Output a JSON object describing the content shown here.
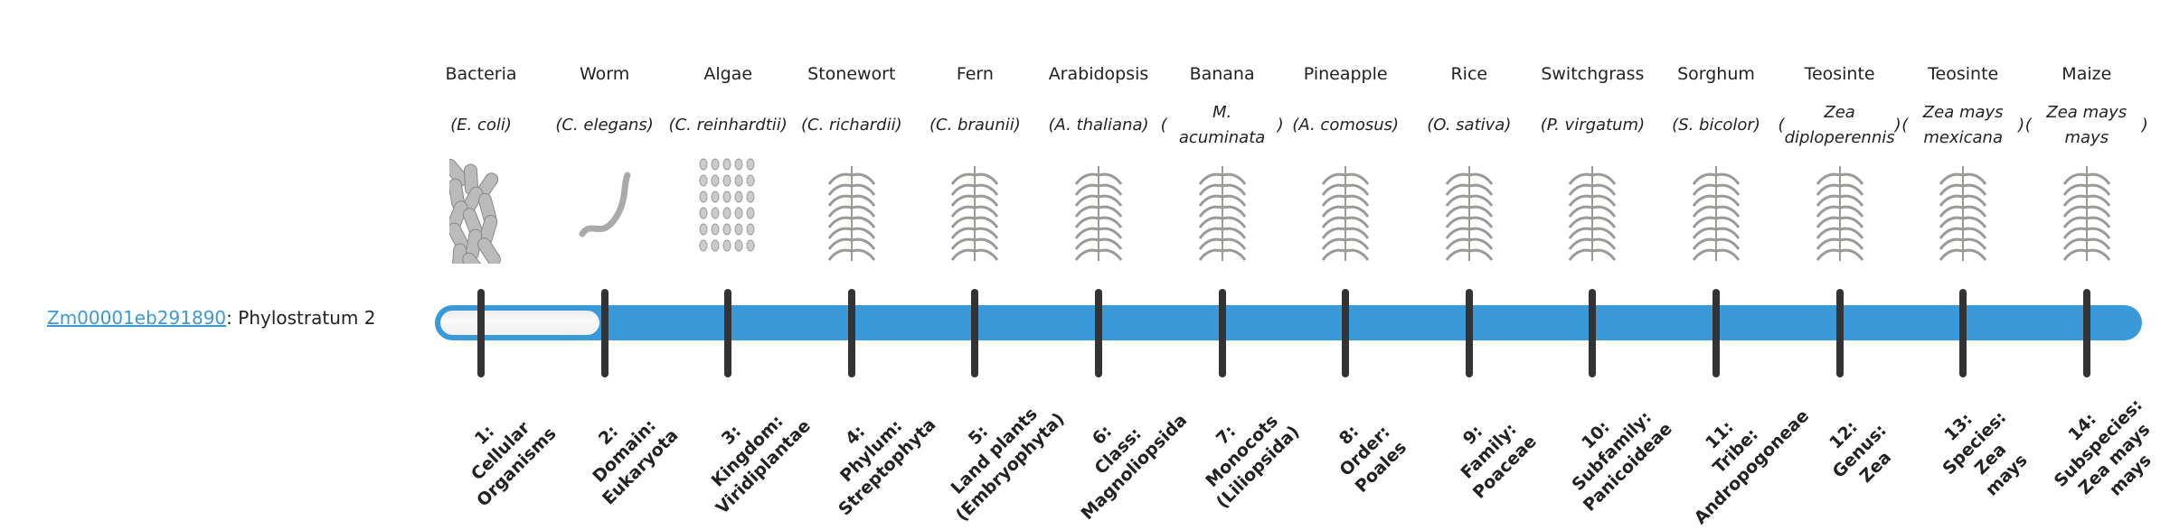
{
  "gene": {
    "id": "Zm00001eb291890",
    "suffix": ": Phylostratum 2",
    "phylostratum": 2
  },
  "colors": {
    "bar": "#3a9ad9",
    "tick": "#333333",
    "link": "#3a9ad9"
  },
  "strata": [
    {
      "name": "Bacteria",
      "species": "E. coli",
      "icon": "bacteria-icon",
      "label": [
        "1:",
        "Cellular",
        "Organisms"
      ]
    },
    {
      "name": "Worm",
      "species": "C. elegans",
      "icon": "worm-icon",
      "label": [
        "2:",
        "Domain:",
        "Eukaryota"
      ]
    },
    {
      "name": "Algae",
      "species": "C. reinhardtii",
      "icon": "algae-icon",
      "label": [
        "3:",
        "Kingdom:",
        "Viridiplantae"
      ]
    },
    {
      "name": "Stonewort",
      "species": "C. richardii",
      "icon": "stonewort-icon",
      "label": [
        "4:",
        "Phylum:",
        "Streptophyta"
      ]
    },
    {
      "name": "Fern",
      "species": "C. braunii",
      "icon": "fern-icon",
      "label": [
        "5:",
        "Land plants",
        "(Embryophyta)"
      ]
    },
    {
      "name": "Arabidopsis",
      "species": "A. thaliana",
      "icon": "arabidopsis-icon",
      "label": [
        "6:",
        "Class:",
        "Magnoliopsida"
      ]
    },
    {
      "name": "Banana",
      "species": "M. acuminata",
      "icon": "banana-icon",
      "label": [
        "7:",
        "Monocots",
        "(Liliopsida)"
      ]
    },
    {
      "name": "Pineapple",
      "species": "A. comosus",
      "icon": "pineapple-icon",
      "label": [
        "8:",
        "Order:",
        "Poales"
      ]
    },
    {
      "name": "Rice",
      "species": "O. sativa",
      "icon": "rice-icon",
      "label": [
        "9:",
        "Family:",
        "Poaceae"
      ]
    },
    {
      "name": "Switchgrass",
      "species": "P. virgatum",
      "icon": "switchgrass-icon",
      "label": [
        "10:",
        "Subfamily:",
        "Panicoideae"
      ]
    },
    {
      "name": "Sorghum",
      "species": "S. bicolor",
      "icon": "sorghum-icon",
      "label": [
        "11:",
        "Tribe:",
        "Andropogoneae"
      ]
    },
    {
      "name": "Teosinte",
      "species": "Zea diploperennis",
      "icon": "teosinte-icon",
      "label": [
        "12:",
        "Genus:",
        "Zea"
      ]
    },
    {
      "name": "Teosinte",
      "species": "Zea mays mexicana",
      "icon": "teosinte-icon",
      "label": [
        "13:",
        "Species:",
        "Zea",
        "mays"
      ]
    },
    {
      "name": "Maize",
      "species": "Zea mays mays",
      "icon": "maize-icon",
      "label": [
        "14:",
        "Subspecies:",
        "Zea mays",
        "mays"
      ]
    }
  ]
}
